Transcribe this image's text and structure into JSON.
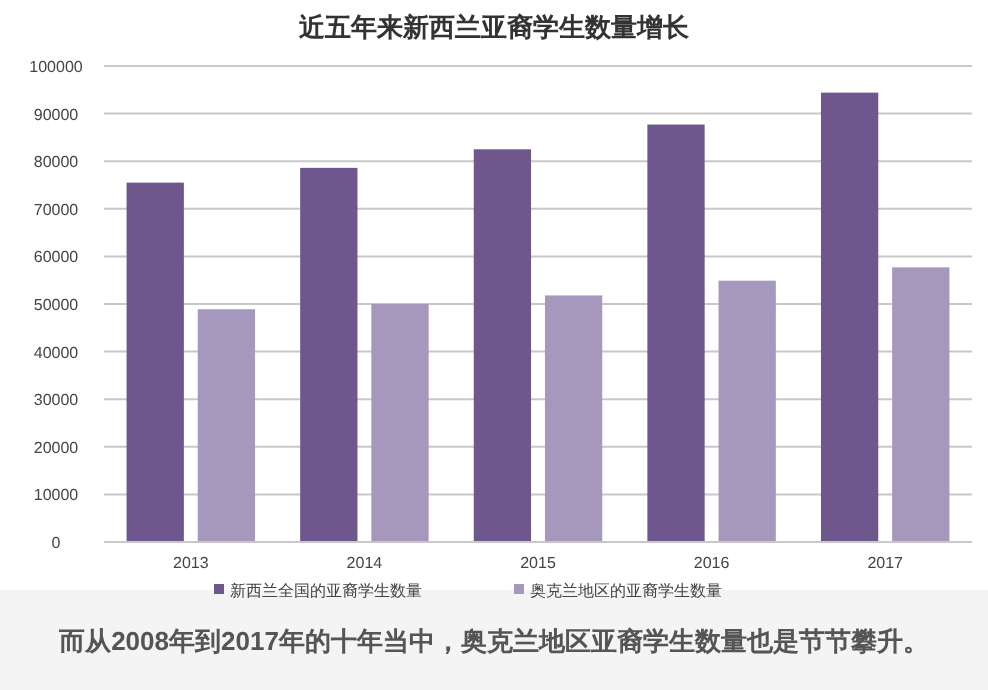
{
  "chart_data": {
    "type": "bar",
    "title": "近五年来新西兰亚裔学生数量增长",
    "categories": [
      "2013",
      "2014",
      "2015",
      "2016",
      "2017"
    ],
    "series": [
      {
        "name": "新西兰全国的亚裔学生数量",
        "color": "#6e578c",
        "values": [
          75500,
          78600,
          82500,
          87700,
          94400
        ]
      },
      {
        "name": "奥克兰地区的亚裔学生数量",
        "color": "#a698bd",
        "values": [
          48900,
          50000,
          51800,
          54900,
          57700
        ]
      }
    ],
    "ylim": [
      0,
      100000
    ],
    "yticks": [
      0,
      10000,
      20000,
      30000,
      40000,
      50000,
      60000,
      70000,
      80000,
      90000,
      100000
    ],
    "grid": "y",
    "legend": "bottom",
    "annotations": [
      "而从2008年到2017年的十年当中，奥克兰地区亚裔学生数量也是节节攀升。"
    ]
  }
}
